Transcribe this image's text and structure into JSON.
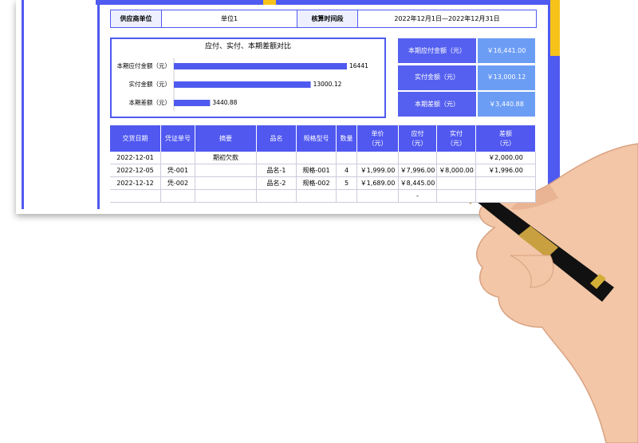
{
  "header": {
    "cells": [
      "供应商单位",
      "单位1",
      "核算时间段",
      "2022年12月1日—2022年12月31日"
    ]
  },
  "chart_data": {
    "type": "bar",
    "title": "应付、实付、本期差额对比",
    "categories": [
      "本期应付金额（元）",
      "实付金额（元）",
      "本期差额（元）"
    ],
    "values": [
      16441,
      13000.12,
      3440.88
    ],
    "color": "#4f5af0"
  },
  "summary": {
    "rows": [
      [
        "本期应付金额（元）",
        "￥16,441.00"
      ],
      [
        "实付金额（元）",
        "￥13,000.12"
      ],
      [
        "本期差额（元）",
        "￥3,440.88"
      ]
    ]
  },
  "table": {
    "columns": [
      "交货日期",
      "凭证单号",
      "摘要",
      "品名",
      "规格型号",
      "数量",
      "单价\n（元）",
      "应付\n（元）",
      "实付\n（元）",
      "差额\n（元）"
    ],
    "rows": [
      [
        "2022-12-01",
        null,
        "期初欠款",
        null,
        null,
        null,
        null,
        null,
        null,
        "￥2,000.00"
      ],
      [
        "2022-12-05",
        "凭-001",
        null,
        "品名-1",
        "规格-001",
        "4",
        "￥1,999.00",
        "￥7,996.00",
        "￥8,000.00",
        "￥1,996.00"
      ],
      [
        "2022-12-12",
        "凭-002",
        null,
        "品名-2",
        "规格-002",
        "5",
        "￥1,689.00",
        "￥8,445.00",
        null,
        null
      ],
      [
        null,
        null,
        null,
        null,
        null,
        null,
        null,
        "-",
        null,
        null
      ]
    ]
  }
}
